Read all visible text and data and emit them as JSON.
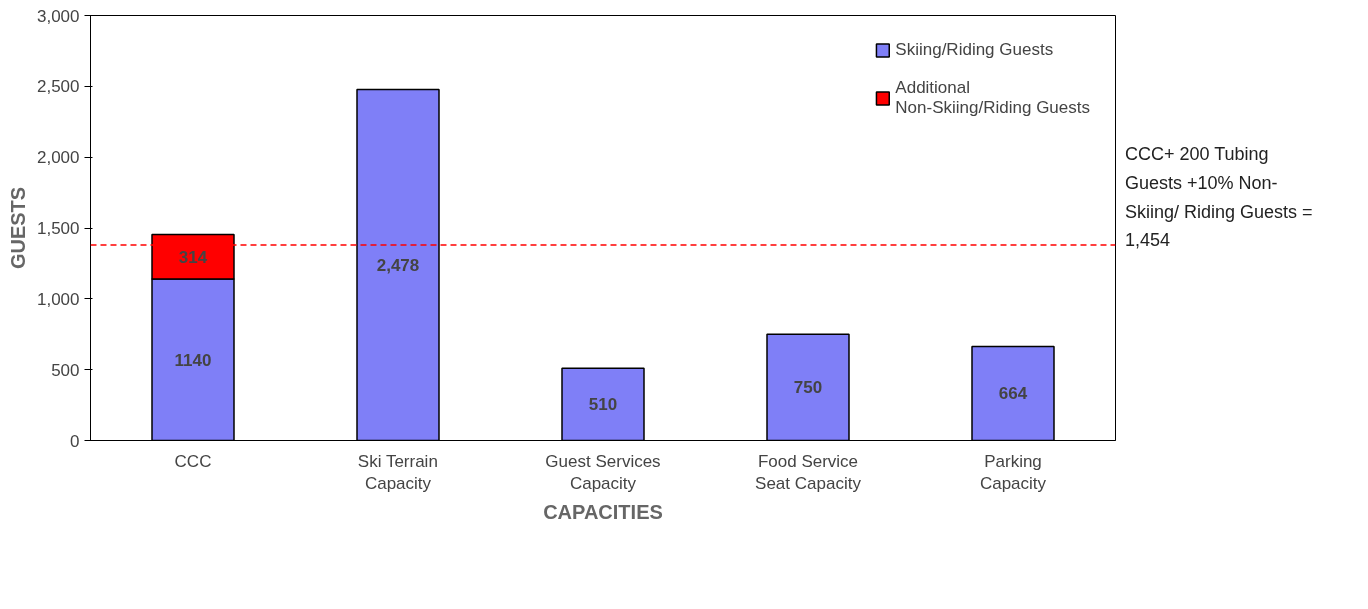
{
  "chart_data": {
    "type": "bar",
    "xlabel": "CAPACITIES",
    "ylabel": "GUESTS",
    "categories": [
      "CCC",
      "Ski Terrain Capacity",
      "Guest Services Capacity",
      "Food Service Seat Capacity",
      "Parking Capacity"
    ],
    "stacked": true,
    "series": [
      {
        "name": "Skiing/Riding Guests",
        "color": "#7f7ff7",
        "values": [
          1140,
          2478,
          510,
          750,
          664
        ],
        "value_labels": [
          "1140",
          "2,478",
          "510",
          "750",
          "664"
        ]
      },
      {
        "name": "Additional Non-Skiing/Riding Guests",
        "color": "#ff0000",
        "values": [
          314,
          null,
          null,
          null,
          null
        ],
        "value_labels": [
          "314",
          null,
          null,
          null,
          null
        ]
      }
    ],
    "ylim": [
      0,
      3000
    ],
    "yticks": [
      {
        "value": 0,
        "label": "0"
      },
      {
        "value": 500,
        "label": "500"
      },
      {
        "value": 1000,
        "label": "1,000"
      },
      {
        "value": 1500,
        "label": "1,500"
      },
      {
        "value": 2000,
        "label": "2,000"
      },
      {
        "value": 2500,
        "label": "2,500"
      },
      {
        "value": 3000,
        "label": "3,000"
      }
    ],
    "ref_lines": [
      {
        "axis": "y",
        "value": 1380,
        "label": null,
        "color": "#ff0000",
        "line_style": "dashed"
      }
    ],
    "annotations": [
      "CCC+ 200 Tubing Guests +10% Non-Skiing/ Riding Guests = 1,454"
    ],
    "legend": "top right",
    "grid": false
  }
}
